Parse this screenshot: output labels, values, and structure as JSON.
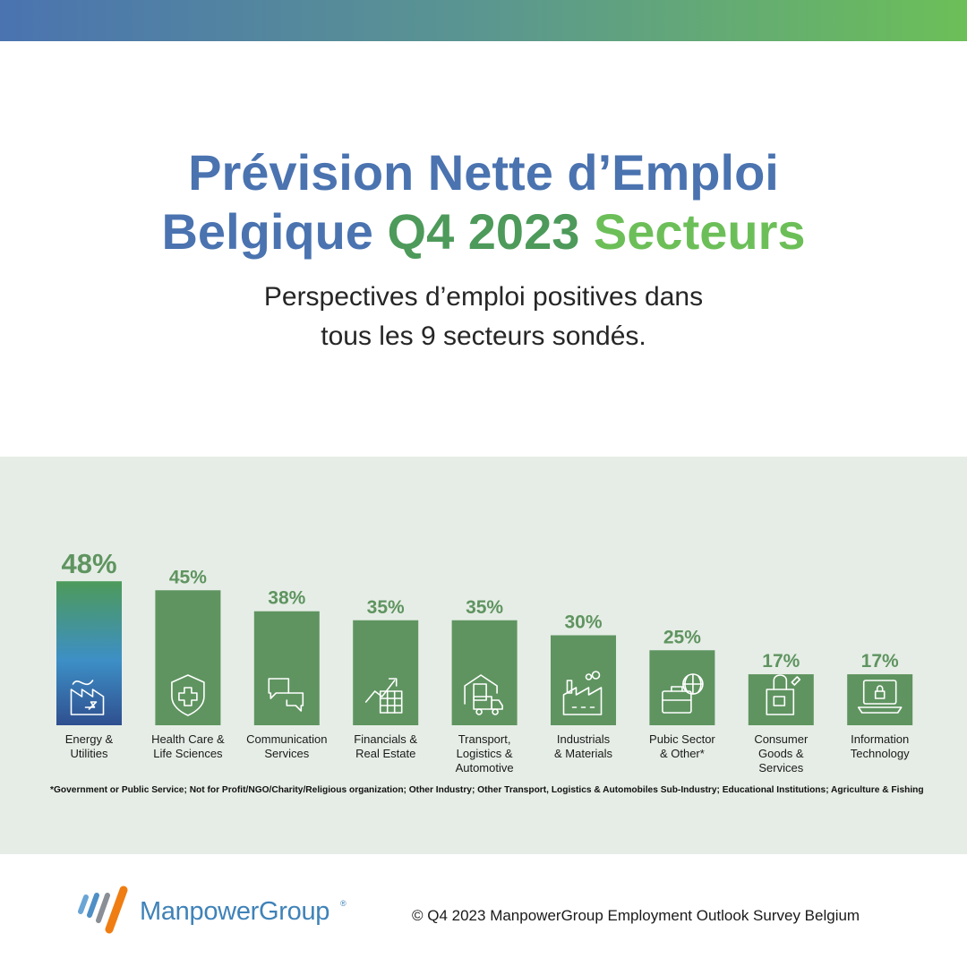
{
  "header": {
    "title_line1": "Prévision Nette d’Emploi",
    "title_line2_a": "Belgique ",
    "title_line2_b": "Q4 2023 ",
    "title_line2_c": "Secteurs",
    "subtitle_line1": "Perspectives d’emploi positives dans",
    "subtitle_line2": "tous les 9 secteurs sondés."
  },
  "chart_data": {
    "type": "bar",
    "categories": [
      [
        "Energy &",
        "Utilities"
      ],
      [
        "Health Care &",
        "Life Sciences"
      ],
      [
        "Communication",
        "Services"
      ],
      [
        "Financials &",
        "Real Estate"
      ],
      [
        "Transport,",
        "Logistics &",
        "Automotive"
      ],
      [
        "Industrials",
        "& Materials"
      ],
      [
        "Pubic Sector",
        "& Other*"
      ],
      [
        "Consumer",
        "Goods &",
        "Services"
      ],
      [
        "Information",
        "Technology"
      ]
    ],
    "values": [
      48,
      45,
      38,
      35,
      35,
      30,
      25,
      17,
      17
    ],
    "value_labels": [
      "48%",
      "45%",
      "38%",
      "35%",
      "35%",
      "30%",
      "25%",
      "17%",
      "17%"
    ],
    "unit": "%",
    "icons": [
      "factory-energy-icon",
      "health-shield-cross-icon",
      "speech-bubbles-icon",
      "growth-chart-icon",
      "warehouse-truck-icon",
      "factory-icon",
      "briefcase-globe-icon",
      "shopping-bag-icon",
      "laptop-lock-icon"
    ],
    "colors": {
      "bar": "#5f9460",
      "highlight_top": "#4d9a5a",
      "highlight_mid": "#3d8fc6",
      "highlight_bottom": "#2f4f8f",
      "label": "#5f9460"
    },
    "highlight_index": 0,
    "footnote": "*Government or Public Service; Not for Profit/NGO/Charity/Religious organization; Other Industry; Other Transport, Logistics & Automobiles Sub-Industry; Educational Institutions; Agriculture & Fishing"
  },
  "footer": {
    "logo_text": "ManpowerGroup",
    "logo_reg": "®",
    "copyright": "© Q4 2023 ManpowerGroup Employment Outlook Survey Belgium"
  }
}
